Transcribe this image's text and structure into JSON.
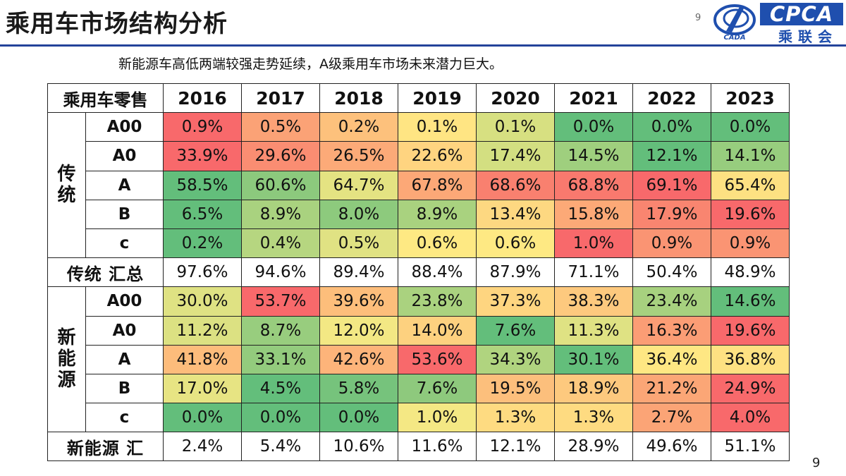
{
  "header": {
    "title": "乘用车市场结构分析",
    "page_small": "9",
    "logo_text": "CPCA",
    "logo_sub": "乘联会",
    "logo_mark_text": "CADA"
  },
  "subtitle": "新能源车高低两端较强走势延续，A级乘用车市场未来潜力巨大。",
  "table": {
    "corner": "乘用车零售",
    "years": [
      "2016",
      "2017",
      "2018",
      "2019",
      "2020",
      "2021",
      "2022",
      "2023"
    ],
    "groups": [
      {
        "label_chars": [
          "传",
          "统"
        ],
        "rows": [
          {
            "label": "A00",
            "values": [
              "0.9%",
              "0.5%",
              "0.2%",
              "0.1%",
              "0.1%",
              "0.0%",
              "0.0%",
              "0.0%"
            ],
            "colors": [
              "#f8696b",
              "#fba276",
              "#fdc17c",
              "#ffe583",
              "#d7e081",
              "#63be7b",
              "#63be7b",
              "#63be7b"
            ]
          },
          {
            "label": "A0",
            "values": [
              "33.9%",
              "29.6%",
              "26.5%",
              "22.6%",
              "17.4%",
              "14.5%",
              "12.1%",
              "14.1%"
            ],
            "colors": [
              "#f8696b",
              "#fa8d72",
              "#fcaa78",
              "#ffd480",
              "#d3df81",
              "#9fcf7e",
              "#63be7b",
              "#97cd7e"
            ]
          },
          {
            "label": "A",
            "values": [
              "58.5%",
              "60.6%",
              "64.7%",
              "67.8%",
              "68.6%",
              "68.8%",
              "69.1%",
              "65.4%"
            ],
            "colors": [
              "#63be7b",
              "#8cc97d",
              "#e4e382",
              "#fca877",
              "#f9806f",
              "#f9796e",
              "#f8696b",
              "#fde182"
            ]
          },
          {
            "label": "B",
            "values": [
              "6.5%",
              "8.9%",
              "8.0%",
              "8.9%",
              "13.4%",
              "15.8%",
              "17.9%",
              "19.6%"
            ],
            "colors": [
              "#63be7b",
              "#a9d27f",
              "#8dca7d",
              "#a9d27f",
              "#fdd881",
              "#fca977",
              "#f98570",
              "#f8696b"
            ]
          },
          {
            "label": "c",
            "values": [
              "0.2%",
              "0.4%",
              "0.5%",
              "0.6%",
              "0.6%",
              "1.0%",
              "0.9%",
              "0.9%"
            ],
            "colors": [
              "#63be7b",
              "#b6d680",
              "#e0e283",
              "#fee983",
              "#fee983",
              "#f8696b",
              "#fa9473",
              "#fa9473"
            ]
          }
        ],
        "total_label": "传统 汇总",
        "totals": [
          "97.6%",
          "94.6%",
          "89.4%",
          "88.4%",
          "87.9%",
          "71.1%",
          "50.4%",
          "48.9%"
        ]
      },
      {
        "label_chars": [
          "新",
          "能",
          "源"
        ],
        "rows": [
          {
            "label": "A00",
            "values": [
              "30.0%",
              "53.7%",
              "39.6%",
              "23.8%",
              "37.3%",
              "38.3%",
              "23.4%",
              "14.6%"
            ],
            "colors": [
              "#dfe283",
              "#f8696b",
              "#fdbe7b",
              "#aad27f",
              "#fed580",
              "#fdc97e",
              "#a7d17f",
              "#63be7b"
            ]
          },
          {
            "label": "A0",
            "values": [
              "11.2%",
              "8.7%",
              "12.0%",
              "14.0%",
              "7.6%",
              "11.3%",
              "16.3%",
              "19.6%"
            ],
            "colors": [
              "#dce182",
              "#98cd7e",
              "#f3e884",
              "#fdd17f",
              "#63be7b",
              "#dfe283",
              "#fb9d75",
              "#f8696b"
            ]
          },
          {
            "label": "A",
            "values": [
              "41.8%",
              "33.1%",
              "42.6%",
              "53.6%",
              "34.3%",
              "30.1%",
              "36.4%",
              "36.8%"
            ],
            "colors": [
              "#fdbc7b",
              "#93cb7d",
              "#fdb47a",
              "#f8696b",
              "#b0d47f",
              "#63be7b",
              "#fee783",
              "#fee182"
            ]
          },
          {
            "label": "B",
            "values": [
              "17.0%",
              "4.5%",
              "5.8%",
              "7.6%",
              "19.5%",
              "18.9%",
              "21.2%",
              "24.9%"
            ],
            "colors": [
              "#e7e483",
              "#63be7b",
              "#76c37c",
              "#8ec97d",
              "#fcbf7c",
              "#fdc97e",
              "#fba676",
              "#f8696b"
            ]
          },
          {
            "label": "c",
            "values": [
              "0.0%",
              "0.0%",
              "0.0%",
              "1.0%",
              "1.3%",
              "1.3%",
              "2.7%",
              "4.0%"
            ],
            "colors": [
              "#63be7b",
              "#63be7b",
              "#63be7b",
              "#f4e884",
              "#fedb81",
              "#fedb81",
              "#fba476",
              "#f8696b"
            ]
          }
        ],
        "total_label": "新能源 汇",
        "totals": [
          "2.4%",
          "5.4%",
          "10.6%",
          "11.6%",
          "12.1%",
          "28.9%",
          "49.6%",
          "51.1%"
        ]
      }
    ]
  },
  "footer": {
    "page_number": "9"
  }
}
